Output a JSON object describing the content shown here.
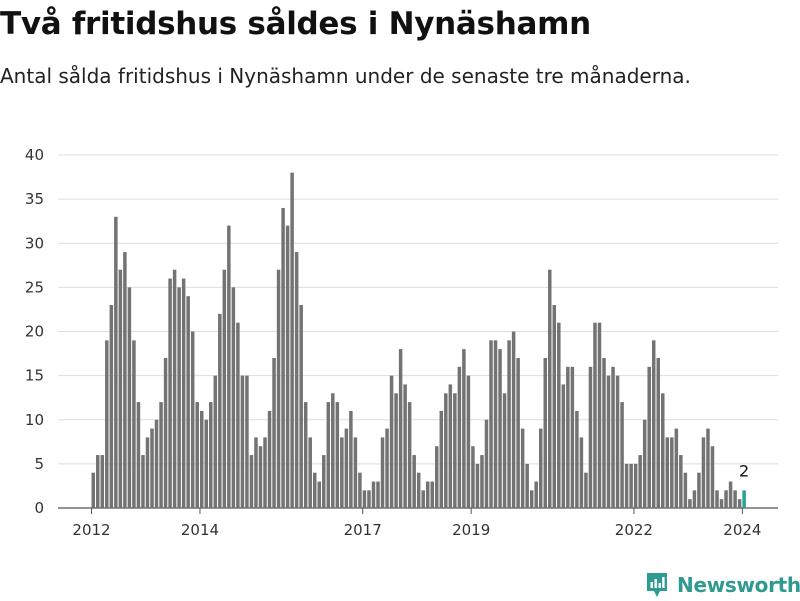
{
  "header": {
    "title": "Två fritidshus såldes i Nynäshamn",
    "subtitle": "Antal sålda fritidshus i Nynäshamn under de senaste tre månaderna."
  },
  "brand": {
    "name": "Newsworthy",
    "icon": "newsworthy-logo-icon",
    "color": "#2f9a90"
  },
  "chart_data": {
    "type": "bar",
    "title": "Två fritidshus såldes i Nynäshamn",
    "subtitle": "Antal sålda fritidshus i Nynäshamn under de senaste tre månaderna.",
    "x_start": "2012-01",
    "x_frequency": "monthly",
    "x_ticks": [
      "2012",
      "2014",
      "2017",
      "2019",
      "2022",
      "2024"
    ],
    "x_tick_dates": [
      "2012-01",
      "2014-01",
      "2017-01",
      "2019-01",
      "2022-01",
      "2024-01"
    ],
    "y_ticks": [
      0,
      5,
      10,
      15,
      20,
      25,
      30,
      35,
      40
    ],
    "ylim": [
      0,
      40
    ],
    "grid": true,
    "bar_color": "#737373",
    "highlight_color": "#2aa198",
    "highlight_label": "2",
    "values": [
      4,
      6,
      6,
      19,
      23,
      33,
      27,
      29,
      25,
      19,
      12,
      6,
      8,
      9,
      10,
      12,
      17,
      26,
      27,
      25,
      26,
      24,
      20,
      12,
      11,
      10,
      12,
      15,
      22,
      27,
      32,
      25,
      21,
      15,
      15,
      6,
      8,
      7,
      8,
      11,
      17,
      27,
      34,
      32,
      38,
      29,
      23,
      12,
      8,
      4,
      3,
      6,
      12,
      13,
      12,
      8,
      9,
      11,
      8,
      4,
      2,
      2,
      3,
      3,
      8,
      9,
      15,
      13,
      18,
      14,
      12,
      6,
      4,
      2,
      3,
      3,
      7,
      11,
      13,
      14,
      13,
      16,
      18,
      15,
      7,
      5,
      6,
      10,
      19,
      19,
      18,
      13,
      19,
      20,
      17,
      9,
      5,
      2,
      3,
      9,
      17,
      27,
      23,
      21,
      14,
      16,
      16,
      11,
      8,
      4,
      16,
      21,
      21,
      17,
      15,
      16,
      15,
      12,
      5,
      5,
      5,
      6,
      10,
      16,
      19,
      17,
      13,
      8,
      8,
      9,
      6,
      4,
      1,
      2,
      4,
      8,
      9,
      7,
      2,
      1,
      2,
      3,
      2,
      1,
      2
    ]
  }
}
